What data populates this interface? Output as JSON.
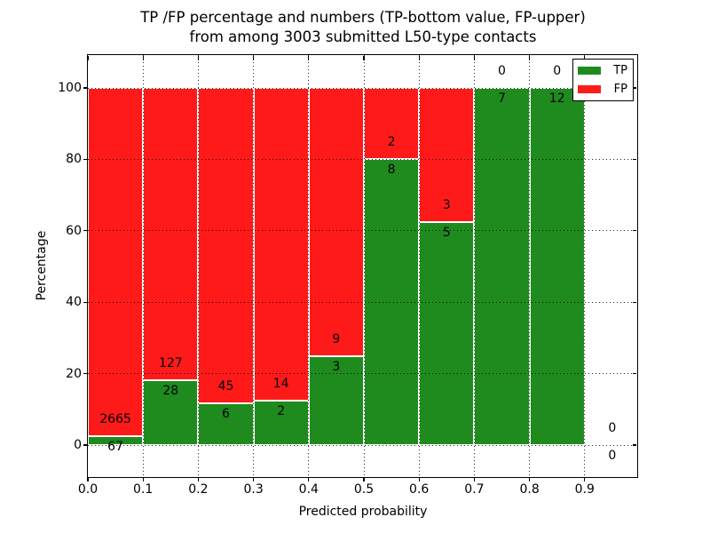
{
  "figure": {
    "title_line1": "TP /FP percentage and numbers (TP-bottom value, FP-upper)",
    "title_line2": "from among 3003 submitted L50-type contacts",
    "xlabel": "Predicted probability",
    "ylabel": "Percentage"
  },
  "legend": {
    "position": "upper right",
    "items": [
      {
        "label": "TP",
        "color": "#1f8b1f"
      },
      {
        "label": "FP",
        "color": "#ff1a1a"
      }
    ]
  },
  "colors": {
    "tp_green": "#1f8b1f",
    "fp_red": "#ff1a1a",
    "bar_edge": "#ffffff",
    "text": "#000000",
    "background": "#ffffff"
  },
  "chart_data": {
    "type": "bar",
    "stacked": true,
    "title": "TP /FP percentage and numbers (TP-bottom value, FP-upper) from among 3003 submitted L50-type contacts",
    "xlabel": "Predicted probability",
    "ylabel": "Percentage",
    "total_contacts": 3003,
    "bin_edges": [
      0.0,
      0.1,
      0.2,
      0.3,
      0.4,
      0.5,
      0.6,
      0.7,
      0.8,
      0.9,
      1.0
    ],
    "categories": [
      "0.0-0.1",
      "0.1-0.2",
      "0.2-0.3",
      "0.3-0.4",
      "0.4-0.5",
      "0.5-0.6",
      "0.6-0.7",
      "0.7-0.8",
      "0.8-0.9",
      "0.9-1.0"
    ],
    "series": [
      {
        "name": "TP",
        "color": "#1f8b1f",
        "counts": [
          67,
          28,
          6,
          2,
          3,
          8,
          5,
          7,
          12,
          0
        ],
        "percent": [
          2.45,
          18.06,
          11.76,
          12.5,
          25.0,
          80.0,
          62.5,
          100.0,
          100.0,
          0.0
        ]
      },
      {
        "name": "FP",
        "color": "#ff1a1a",
        "counts": [
          2665,
          127,
          45,
          14,
          9,
          2,
          3,
          0,
          0,
          0
        ],
        "percent": [
          97.55,
          81.94,
          88.24,
          87.5,
          75.0,
          20.0,
          37.5,
          0.0,
          0.0,
          0.0
        ]
      }
    ],
    "xticks": [
      0.0,
      0.1,
      0.2,
      0.3,
      0.4,
      0.5,
      0.6,
      0.7,
      0.8,
      0.9
    ],
    "xtick_labels": [
      "0.0",
      "0.1",
      "0.2",
      "0.3",
      "0.4",
      "0.5",
      "0.6",
      "0.7",
      "0.8",
      "0.9"
    ],
    "yticks": [
      0,
      20,
      40,
      60,
      80,
      100
    ],
    "ytick_labels": [
      "0",
      "20",
      "40",
      "60",
      "80",
      "100"
    ],
    "xlim": [
      0.0,
      0.995
    ],
    "ylim": [
      -9.5,
      109.0
    ],
    "grid": "dotted",
    "legend_position": "upper right"
  }
}
